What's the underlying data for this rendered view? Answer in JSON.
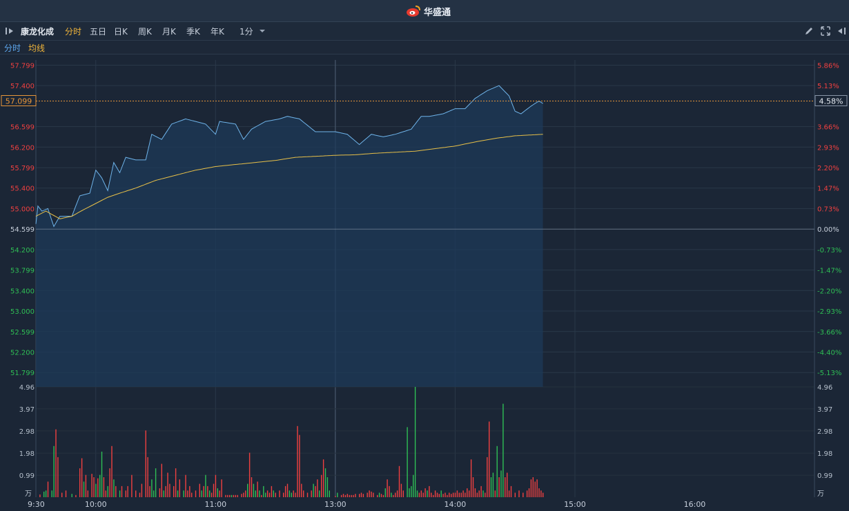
{
  "app": {
    "brand": "华盛通"
  },
  "toolbar": {
    "stock_name": "康龙化成",
    "periods": [
      "分时",
      "五日",
      "日K",
      "周K",
      "月K",
      "季K",
      "年K"
    ],
    "active_period": "分时",
    "interval": "1分"
  },
  "legend": {
    "time_share": "分时",
    "avg_line": "均线"
  },
  "price_axis": {
    "left_labels": [
      "57.799",
      "57.400",
      "56.599",
      "56.200",
      "55.799",
      "55.400",
      "55.000",
      "54.599",
      "54.200",
      "53.799",
      "53.400",
      "53.000",
      "52.599",
      "52.200",
      "51.799"
    ],
    "right_labels": [
      "5.86%",
      "5.13%",
      "3.66%",
      "2.93%",
      "2.20%",
      "1.47%",
      "0.73%",
      "0.00%",
      "-0.73%",
      "-1.47%",
      "-2.20%",
      "-2.93%",
      "-3.66%",
      "-4.40%",
      "-5.13%"
    ],
    "current_price": "57.099",
    "current_change": "4.58%",
    "prev_close": 54.599
  },
  "volume_axis": {
    "labels": [
      "4.96",
      "3.97",
      "2.98",
      "1.98",
      "0.99"
    ],
    "unit": "万"
  },
  "time_axis": [
    "9:30",
    "10:00",
    "11:00",
    "13:00",
    "14:00",
    "15:00",
    "16:00"
  ],
  "colors": {
    "up": "#f04040",
    "down": "#2fbf55",
    "price_line": "#6fb4ea",
    "avg_line": "#e8c048",
    "active": "#f0b43a"
  },
  "chart_data": {
    "type": "line",
    "y_range": [
      51.6,
      57.9
    ],
    "volume_max": 4.96,
    "price_keypoints": [
      [
        0,
        54.7
      ],
      [
        1,
        55.05
      ],
      [
        3,
        54.95
      ],
      [
        6,
        55.0
      ],
      [
        9,
        54.65
      ],
      [
        12,
        54.85
      ],
      [
        18,
        54.85
      ],
      [
        22,
        55.25
      ],
      [
        27,
        55.3
      ],
      [
        30,
        55.75
      ],
      [
        33,
        55.6
      ],
      [
        36,
        55.35
      ],
      [
        39,
        55.9
      ],
      [
        42,
        55.7
      ],
      [
        45,
        56.0
      ],
      [
        50,
        55.95
      ],
      [
        55,
        55.95
      ],
      [
        58,
        56.45
      ],
      [
        63,
        56.35
      ],
      [
        68,
        56.65
      ],
      [
        75,
        56.75
      ],
      [
        80,
        56.7
      ],
      [
        85,
        56.65
      ],
      [
        90,
        56.45
      ],
      [
        92,
        56.7
      ],
      [
        100,
        56.65
      ],
      [
        104,
        56.35
      ],
      [
        108,
        56.55
      ],
      [
        115,
        56.7
      ],
      [
        122,
        56.75
      ],
      [
        126,
        56.8
      ],
      [
        132,
        56.75
      ],
      [
        140,
        56.5
      ],
      [
        150,
        56.5
      ],
      [
        156,
        56.45
      ],
      [
        162,
        56.25
      ],
      [
        168,
        56.45
      ],
      [
        174,
        56.4
      ],
      [
        180,
        56.45
      ],
      [
        188,
        56.55
      ],
      [
        193,
        56.8
      ],
      [
        197,
        56.8
      ],
      [
        204,
        56.85
      ],
      [
        210,
        56.95
      ],
      [
        215,
        56.95
      ],
      [
        220,
        57.15
      ],
      [
        226,
        57.3
      ],
      [
        232,
        57.4
      ],
      [
        237,
        57.2
      ],
      [
        240,
        56.9
      ],
      [
        243,
        56.85
      ],
      [
        248,
        57.0
      ],
      [
        252,
        57.1
      ],
      [
        254,
        57.05
      ]
    ],
    "avg_keypoints": [
      [
        0,
        54.85
      ],
      [
        5,
        54.95
      ],
      [
        12,
        54.8
      ],
      [
        18,
        54.85
      ],
      [
        24,
        54.98
      ],
      [
        30,
        55.1
      ],
      [
        36,
        55.22
      ],
      [
        42,
        55.3
      ],
      [
        50,
        55.4
      ],
      [
        60,
        55.55
      ],
      [
        70,
        55.65
      ],
      [
        80,
        55.75
      ],
      [
        90,
        55.82
      ],
      [
        100,
        55.86
      ],
      [
        110,
        55.9
      ],
      [
        120,
        55.94
      ],
      [
        130,
        56.0
      ],
      [
        140,
        56.02
      ],
      [
        150,
        56.04
      ],
      [
        160,
        56.05
      ],
      [
        170,
        56.08
      ],
      [
        180,
        56.1
      ],
      [
        190,
        56.12
      ],
      [
        200,
        56.17
      ],
      [
        210,
        56.22
      ],
      [
        220,
        56.3
      ],
      [
        230,
        56.37
      ],
      [
        240,
        56.42
      ],
      [
        254,
        56.45
      ]
    ],
    "volume_bars": [
      [
        2,
        0.12,
        "up"
      ],
      [
        4,
        0.25,
        "down"
      ],
      [
        5,
        0.3,
        "down"
      ],
      [
        6,
        0.7,
        "up"
      ],
      [
        8,
        0.3,
        "down"
      ],
      [
        9,
        2.3,
        "down"
      ],
      [
        10,
        3.05,
        "up"
      ],
      [
        11,
        1.8,
        "up"
      ],
      [
        13,
        0.2,
        "up"
      ],
      [
        15,
        0.3,
        "up"
      ],
      [
        18,
        0.15,
        "down"
      ],
      [
        20,
        0.1,
        "up"
      ],
      [
        22,
        1.3,
        "up"
      ],
      [
        23,
        1.75,
        "up"
      ],
      [
        24,
        0.7,
        "down"
      ],
      [
        25,
        1.0,
        "up"
      ],
      [
        26,
        0.3,
        "up"
      ],
      [
        28,
        1.05,
        "up"
      ],
      [
        29,
        0.9,
        "up"
      ],
      [
        30,
        0.6,
        "down"
      ],
      [
        31,
        0.85,
        "up"
      ],
      [
        32,
        1.0,
        "down"
      ],
      [
        33,
        2.05,
        "down"
      ],
      [
        34,
        0.9,
        "up"
      ],
      [
        35,
        0.3,
        "up"
      ],
      [
        36,
        0.5,
        "down"
      ],
      [
        37,
        1.3,
        "up"
      ],
      [
        38,
        2.3,
        "up"
      ],
      [
        39,
        0.8,
        "down"
      ],
      [
        40,
        0.5,
        "up"
      ],
      [
        42,
        0.3,
        "down"
      ],
      [
        43,
        0.5,
        "up"
      ],
      [
        45,
        0.3,
        "up"
      ],
      [
        46,
        0.5,
        "up"
      ],
      [
        48,
        1.0,
        "up"
      ],
      [
        50,
        0.3,
        "up"
      ],
      [
        52,
        0.2,
        "up"
      ],
      [
        53,
        0.6,
        "up"
      ],
      [
        55,
        3.0,
        "up"
      ],
      [
        56,
        1.8,
        "up"
      ],
      [
        57,
        0.5,
        "up"
      ],
      [
        58,
        0.8,
        "down"
      ],
      [
        59,
        0.3,
        "down"
      ],
      [
        60,
        1.3,
        "down"
      ],
      [
        62,
        0.4,
        "up"
      ],
      [
        63,
        1.5,
        "up"
      ],
      [
        64,
        0.3,
        "down"
      ],
      [
        65,
        0.5,
        "up"
      ],
      [
        66,
        1.1,
        "up"
      ],
      [
        67,
        0.6,
        "up"
      ],
      [
        69,
        0.5,
        "up"
      ],
      [
        70,
        1.3,
        "up"
      ],
      [
        71,
        0.3,
        "down"
      ],
      [
        72,
        0.8,
        "up"
      ],
      [
        74,
        0.3,
        "down"
      ],
      [
        75,
        1.0,
        "up"
      ],
      [
        76,
        0.3,
        "up"
      ],
      [
        77,
        0.5,
        "up"
      ],
      [
        78,
        0.2,
        "up"
      ],
      [
        80,
        0.3,
        "up"
      ],
      [
        82,
        0.6,
        "up"
      ],
      [
        83,
        0.3,
        "down"
      ],
      [
        84,
        0.5,
        "up"
      ],
      [
        85,
        1.0,
        "down"
      ],
      [
        86,
        0.5,
        "up"
      ],
      [
        87,
        0.3,
        "down"
      ],
      [
        88,
        0.2,
        "up"
      ],
      [
        89,
        0.6,
        "up"
      ],
      [
        90,
        1.0,
        "up"
      ],
      [
        91,
        0.4,
        "down"
      ],
      [
        92,
        0.3,
        "up"
      ],
      [
        93,
        0.8,
        "up"
      ],
      [
        95,
        0.1,
        "up"
      ],
      [
        96,
        0.1,
        "up"
      ],
      [
        97,
        0.1,
        "up"
      ],
      [
        98,
        0.1,
        "down"
      ],
      [
        99,
        0.1,
        "up"
      ],
      [
        100,
        0.1,
        "up"
      ],
      [
        101,
        0.1,
        "up"
      ],
      [
        103,
        0.15,
        "up"
      ],
      [
        104,
        0.2,
        "up"
      ],
      [
        105,
        0.3,
        "up"
      ],
      [
        106,
        0.6,
        "down"
      ],
      [
        107,
        2.0,
        "up"
      ],
      [
        108,
        0.9,
        "up"
      ],
      [
        109,
        0.6,
        "down"
      ],
      [
        110,
        0.3,
        "down"
      ],
      [
        111,
        0.7,
        "up"
      ],
      [
        112,
        0.3,
        "down"
      ],
      [
        113,
        0.1,
        "up"
      ],
      [
        114,
        0.5,
        "down"
      ],
      [
        115,
        0.2,
        "down"
      ],
      [
        116,
        0.3,
        "up"
      ],
      [
        117,
        0.2,
        "up"
      ],
      [
        118,
        0.5,
        "up"
      ],
      [
        119,
        0.3,
        "down"
      ],
      [
        120,
        0.2,
        "up"
      ],
      [
        122,
        0.3,
        "up"
      ],
      [
        124,
        0.2,
        "up"
      ],
      [
        125,
        0.5,
        "up"
      ],
      [
        126,
        0.6,
        "up"
      ],
      [
        127,
        0.3,
        "down"
      ],
      [
        128,
        0.2,
        "down"
      ],
      [
        129,
        0.3,
        "up"
      ],
      [
        130,
        0.2,
        "up"
      ],
      [
        131,
        3.2,
        "up"
      ],
      [
        132,
        2.8,
        "up"
      ],
      [
        133,
        0.6,
        "up"
      ],
      [
        134,
        0.3,
        "up"
      ],
      [
        136,
        0.2,
        "up"
      ],
      [
        138,
        0.3,
        "up"
      ],
      [
        139,
        0.6,
        "down"
      ],
      [
        140,
        0.5,
        "up"
      ],
      [
        141,
        0.8,
        "up"
      ],
      [
        142,
        0.3,
        "down"
      ],
      [
        143,
        1.0,
        "up"
      ],
      [
        144,
        1.7,
        "up"
      ],
      [
        145,
        1.3,
        "down"
      ],
      [
        146,
        0.9,
        "down"
      ],
      [
        147,
        0.3,
        "down"
      ],
      [
        150,
        0.05,
        "up"
      ],
      [
        151,
        0.2,
        "down"
      ],
      [
        153,
        0.1,
        "up"
      ],
      [
        154,
        0.15,
        "up"
      ],
      [
        155,
        0.1,
        "up"
      ],
      [
        156,
        0.15,
        "up"
      ],
      [
        157,
        0.1,
        "up"
      ],
      [
        158,
        0.1,
        "up"
      ],
      [
        159,
        0.1,
        "up"
      ],
      [
        160,
        0.15,
        "up"
      ],
      [
        162,
        0.15,
        "up"
      ],
      [
        163,
        0.2,
        "up"
      ],
      [
        164,
        0.15,
        "up"
      ],
      [
        166,
        0.2,
        "up"
      ],
      [
        167,
        0.3,
        "up"
      ],
      [
        168,
        0.25,
        "up"
      ],
      [
        169,
        0.2,
        "up"
      ],
      [
        171,
        0.1,
        "up"
      ],
      [
        172,
        0.2,
        "down"
      ],
      [
        173,
        0.15,
        "up"
      ],
      [
        174,
        0.1,
        "up"
      ],
      [
        175,
        0.4,
        "down"
      ],
      [
        176,
        0.8,
        "up"
      ],
      [
        177,
        0.5,
        "up"
      ],
      [
        178,
        0.2,
        "down"
      ],
      [
        179,
        0.1,
        "up"
      ],
      [
        180,
        0.2,
        "up"
      ],
      [
        181,
        0.3,
        "up"
      ],
      [
        182,
        1.4,
        "up"
      ],
      [
        183,
        0.6,
        "up"
      ],
      [
        184,
        0.3,
        "up"
      ],
      [
        186,
        3.15,
        "down"
      ],
      [
        187,
        0.4,
        "down"
      ],
      [
        188,
        0.5,
        "down"
      ],
      [
        189,
        1.0,
        "down"
      ],
      [
        190,
        4.96,
        "down"
      ],
      [
        191,
        0.3,
        "down"
      ],
      [
        192,
        0.2,
        "up"
      ],
      [
        193,
        0.3,
        "up"
      ],
      [
        194,
        0.2,
        "up"
      ],
      [
        195,
        0.4,
        "up"
      ],
      [
        196,
        0.3,
        "down"
      ],
      [
        197,
        0.5,
        "up"
      ],
      [
        198,
        0.2,
        "up"
      ],
      [
        199,
        0.1,
        "up"
      ],
      [
        200,
        0.3,
        "up"
      ],
      [
        201,
        0.2,
        "up"
      ],
      [
        202,
        0.15,
        "up"
      ],
      [
        203,
        0.3,
        "down"
      ],
      [
        204,
        0.15,
        "up"
      ],
      [
        205,
        0.2,
        "up"
      ],
      [
        206,
        0.1,
        "up"
      ],
      [
        207,
        0.2,
        "up"
      ],
      [
        208,
        0.15,
        "up"
      ],
      [
        209,
        0.2,
        "up"
      ],
      [
        210,
        0.2,
        "up"
      ],
      [
        211,
        0.3,
        "up"
      ],
      [
        212,
        0.2,
        "up"
      ],
      [
        213,
        0.2,
        "up"
      ],
      [
        214,
        0.3,
        "up"
      ],
      [
        215,
        0.2,
        "up"
      ],
      [
        216,
        0.4,
        "up"
      ],
      [
        217,
        0.3,
        "up"
      ],
      [
        218,
        1.7,
        "up"
      ],
      [
        219,
        0.9,
        "up"
      ],
      [
        220,
        0.4,
        "up"
      ],
      [
        221,
        0.2,
        "up"
      ],
      [
        222,
        0.3,
        "up"
      ],
      [
        223,
        0.5,
        "up"
      ],
      [
        224,
        0.3,
        "down"
      ],
      [
        225,
        0.2,
        "up"
      ],
      [
        226,
        1.8,
        "up"
      ],
      [
        227,
        3.4,
        "up"
      ],
      [
        228,
        0.9,
        "down"
      ],
      [
        229,
        1.1,
        "down"
      ],
      [
        230,
        0.3,
        "up"
      ],
      [
        231,
        2.3,
        "down"
      ],
      [
        232,
        0.9,
        "up"
      ],
      [
        233,
        1.2,
        "down"
      ],
      [
        234,
        4.2,
        "down"
      ],
      [
        235,
        0.9,
        "up"
      ],
      [
        236,
        1.1,
        "up"
      ],
      [
        237,
        0.3,
        "up"
      ],
      [
        238,
        0.5,
        "up"
      ],
      [
        240,
        0.2,
        "up"
      ],
      [
        242,
        0.3,
        "up"
      ],
      [
        244,
        0.2,
        "up"
      ],
      [
        246,
        0.3,
        "up"
      ],
      [
        247,
        0.4,
        "up"
      ],
      [
        248,
        0.8,
        "up"
      ],
      [
        249,
        0.9,
        "up"
      ],
      [
        250,
        0.7,
        "up"
      ],
      [
        251,
        0.8,
        "up"
      ],
      [
        252,
        0.4,
        "up"
      ],
      [
        253,
        0.3,
        "up"
      ],
      [
        254,
        0.2,
        "up"
      ]
    ]
  }
}
